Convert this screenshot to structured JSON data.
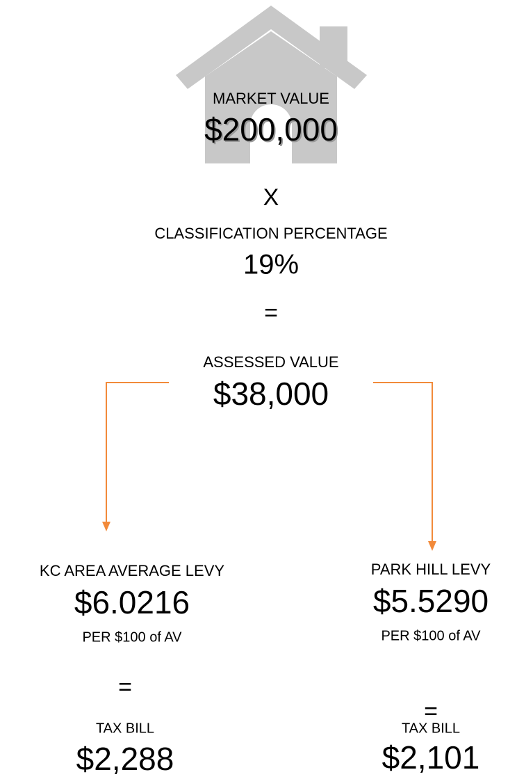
{
  "market": {
    "label": "MARKET VALUE",
    "value": "$200,000"
  },
  "operator_multiply": "X",
  "classification": {
    "label": "CLASSIFICATION PERCENTAGE",
    "value": "19%"
  },
  "operator_equals": "=",
  "assessed": {
    "label": "ASSESSED VALUE",
    "value": "$38,000"
  },
  "branches": [
    {
      "label": "KC AREA AVERAGE LEVY",
      "value": "$6.0216",
      "unit": "PER $100 of AV",
      "operator": "=",
      "result_label": "TAX BILL",
      "result_value": "$2,288"
    },
    {
      "label": "PARK HILL LEVY",
      "value": "$5.5290",
      "unit": "PER $100 of AV",
      "operator": "=",
      "result_label": "TAX BILL",
      "result_value": "$2,101"
    }
  ]
}
